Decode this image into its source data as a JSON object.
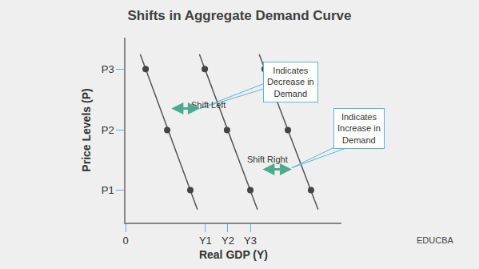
{
  "chart_data": {
    "type": "line",
    "title": "Shifts in Aggregate Demand Curve",
    "x_label": "Real GDP (Y)",
    "y_label": "Price Levels (P)",
    "xlim": [
      0,
      10
    ],
    "ylim": [
      0,
      10
    ],
    "xticks": [
      0,
      {
        "value": 3.7,
        "label": "Y1"
      },
      {
        "value": 4.74,
        "label": "Y2"
      },
      {
        "value": 5.78,
        "label": "Y3"
      }
    ],
    "yticks": [
      {
        "value": 1.75,
        "label": "P1"
      },
      {
        "value": 5.0,
        "label": "P2"
      },
      {
        "value": 8.3,
        "label": "P3"
      }
    ],
    "grid": false,
    "marker": "circle",
    "series": [
      {
        "color": "#555555",
        "x": [
          0.93,
          1.93,
          3.0
        ],
        "y": [
          8.3,
          5.0,
          1.75
        ],
        "line_x": [
          0.68,
          3.33
        ],
        "line_y": [
          9.1,
          0.7
        ]
      },
      {
        "color": "#555555",
        "x": [
          3.67,
          4.7,
          5.78
        ],
        "y": [
          8.3,
          5.0,
          1.75
        ],
        "line_x": [
          3.42,
          6.11
        ],
        "line_y": [
          9.1,
          0.7
        ]
      },
      {
        "color": "#555555",
        "x": [
          6.44,
          7.52,
          8.59
        ],
        "y": [
          8.3,
          5.0,
          1.75
        ],
        "line_x": [
          6.19,
          8.92
        ],
        "line_y": [
          9.1,
          0.7
        ]
      }
    ],
    "annotations": [
      "Shift Left",
      "Indicates\nDecrease in\nDemand",
      "Shift Right",
      "Indicates\nIncrease in\nDemand"
    ],
    "watermark": "EDUCBA"
  }
}
